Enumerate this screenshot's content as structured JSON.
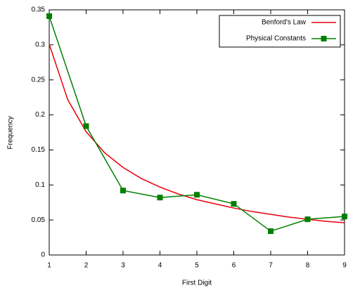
{
  "chart_data": {
    "type": "line",
    "xlabel": "First Digit",
    "ylabel": "Frequency",
    "xlim": [
      1,
      9
    ],
    "xticks": [
      1,
      2,
      3,
      4,
      5,
      6,
      7,
      8,
      9
    ],
    "ylim": [
      0,
      0.35
    ],
    "yticks": [
      0,
      0.05,
      0.1,
      0.15,
      0.2,
      0.25,
      0.3,
      0.35
    ],
    "grid": false,
    "legend": "top-right",
    "series": [
      {
        "name": "Benford's Law",
        "color": "#e8000b",
        "marker": "none",
        "x": [
          1,
          1.5,
          2,
          2.5,
          3,
          3.5,
          4,
          4.5,
          5,
          5.5,
          6,
          6.5,
          7,
          7.5,
          8,
          8.5,
          9
        ],
        "values": [
          0.301,
          0.222,
          0.176,
          0.146,
          0.125,
          0.109,
          0.097,
          0.087,
          0.079,
          0.073,
          0.067,
          0.062,
          0.058,
          0.054,
          0.051,
          0.048,
          0.046
        ]
      },
      {
        "name": "Physical Constants",
        "color": "#008000",
        "marker": "square",
        "x": [
          1,
          2,
          3,
          4,
          5,
          6,
          7,
          8,
          9
        ],
        "values": [
          0.341,
          0.184,
          0.092,
          0.082,
          0.086,
          0.073,
          0.034,
          0.051,
          0.055
        ]
      }
    ]
  }
}
